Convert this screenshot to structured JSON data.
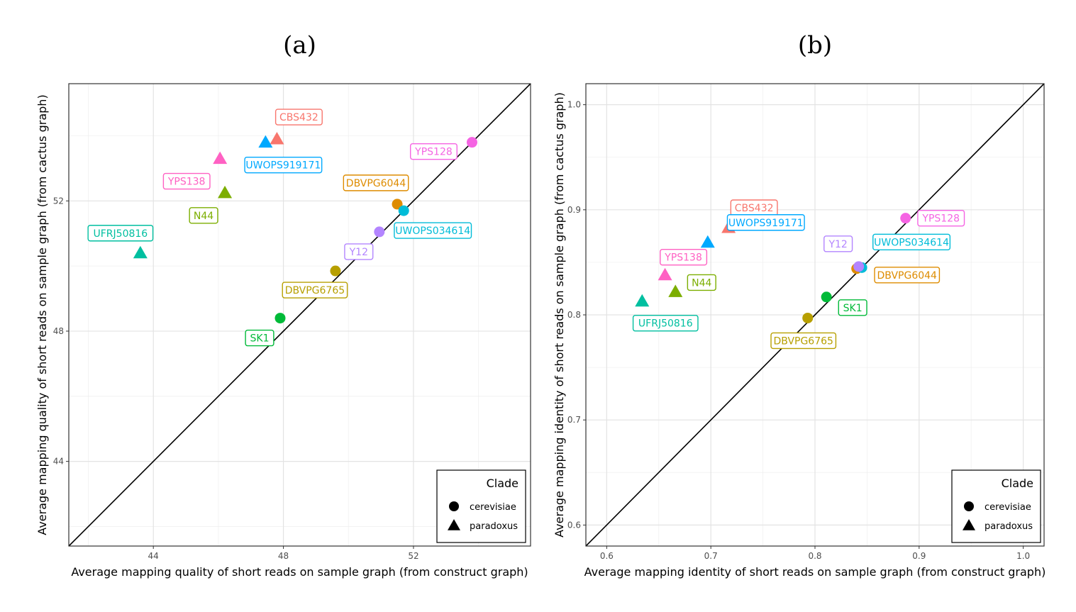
{
  "chart_data": [
    {
      "type": "scatter",
      "panel": "(a)",
      "title": "(a)",
      "xlabel": "Average mapping quality of short reads on sample graph (from construct graph)",
      "ylabel": "Average mapping quality of short reads on sample graph (from cactus graph)",
      "xlim": [
        41.4,
        55.6
      ],
      "ylim": [
        41.4,
        55.6
      ],
      "xticks": [
        44,
        48,
        52
      ],
      "yticks": [
        44,
        48,
        52
      ],
      "xtick_labels": [
        "44",
        "48",
        "52"
      ],
      "ytick_labels": [
        "44",
        "48",
        "52"
      ],
      "grid": true,
      "diagonal": "y = x",
      "legend": {
        "title": "Clade",
        "position": "bottom-right",
        "entries": [
          "cerevisiae",
          "paradoxus"
        ]
      },
      "points": [
        {
          "label": "CBS432",
          "x": 47.8,
          "y": 53.9,
          "clade": "paradoxus",
          "color": "#F8766D"
        },
        {
          "label": "UWOPS919171",
          "x": 47.45,
          "y": 53.8,
          "clade": "paradoxus",
          "color": "#00A9FF"
        },
        {
          "label": "YPS138",
          "x": 46.05,
          "y": 53.3,
          "clade": "paradoxus",
          "color": "#FF61C3"
        },
        {
          "label": "N44",
          "x": 46.2,
          "y": 52.25,
          "clade": "paradoxus",
          "color": "#7CAE00"
        },
        {
          "label": "UFRJ50816",
          "x": 43.6,
          "y": 50.4,
          "clade": "paradoxus",
          "color": "#00BFA0"
        },
        {
          "label": "YPS128",
          "x": 53.8,
          "y": 53.8,
          "clade": "cerevisiae",
          "color": "#F564E3"
        },
        {
          "label": "DBVPG6044",
          "x": 51.5,
          "y": 51.9,
          "clade": "cerevisiae",
          "color": "#DE8C00"
        },
        {
          "label": "UWOPS034614",
          "x": 51.7,
          "y": 51.7,
          "clade": "cerevisiae",
          "color": "#00BCD8"
        },
        {
          "label": "Y12",
          "x": 50.95,
          "y": 51.05,
          "clade": "cerevisiae",
          "color": "#B385FF"
        },
        {
          "label": "DBVPG6765",
          "x": 49.6,
          "y": 49.85,
          "clade": "cerevisiae",
          "color": "#B79F00"
        },
        {
          "label": "SK1",
          "x": 47.9,
          "y": 48.4,
          "clade": "cerevisiae",
          "color": "#00BA38"
        }
      ]
    },
    {
      "type": "scatter",
      "panel": "(b)",
      "title": "(b)",
      "xlabel": "Average mapping identity of short reads on sample graph (from construct graph)",
      "ylabel": "Average mapping identity of short reads on sample graph (from cactus graph)",
      "xlim": [
        0.58,
        1.02
      ],
      "ylim": [
        0.58,
        1.02
      ],
      "xticks": [
        0.6,
        0.7,
        0.8,
        0.9,
        1.0
      ],
      "yticks": [
        0.6,
        0.7,
        0.8,
        0.9,
        1.0
      ],
      "xtick_labels": [
        "0.6",
        "0.7",
        "0.8",
        "0.9",
        "1.0"
      ],
      "ytick_labels": [
        "0.6",
        "0.7",
        "0.8",
        "0.9",
        "1.0"
      ],
      "grid": true,
      "diagonal": "y = x",
      "legend": {
        "title": "Clade",
        "position": "bottom-right",
        "entries": [
          "cerevisiae",
          "paradoxus"
        ]
      },
      "points": [
        {
          "label": "CBS432",
          "x": 0.717,
          "y": 0.883,
          "clade": "paradoxus",
          "color": "#F8766D"
        },
        {
          "label": "UWOPS919171",
          "x": 0.697,
          "y": 0.869,
          "clade": "paradoxus",
          "color": "#00A9FF"
        },
        {
          "label": "YPS138",
          "x": 0.656,
          "y": 0.838,
          "clade": "paradoxus",
          "color": "#FF61C3"
        },
        {
          "label": "N44",
          "x": 0.666,
          "y": 0.822,
          "clade": "paradoxus",
          "color": "#7CAE00"
        },
        {
          "label": "UFRJ50816",
          "x": 0.634,
          "y": 0.813,
          "clade": "paradoxus",
          "color": "#00BFA0"
        },
        {
          "label": "YPS128",
          "x": 0.887,
          "y": 0.892,
          "clade": "cerevisiae",
          "color": "#F564E3"
        },
        {
          "label": "DBVPG6044",
          "x": 0.84,
          "y": 0.844,
          "clade": "cerevisiae",
          "color": "#DE8C00"
        },
        {
          "label": "UWOPS034614",
          "x": 0.845,
          "y": 0.845,
          "clade": "cerevisiae",
          "color": "#00BCD8"
        },
        {
          "label": "Y12",
          "x": 0.842,
          "y": 0.846,
          "clade": "cerevisiae",
          "color": "#B385FF"
        },
        {
          "label": "DBVPG6765",
          "x": 0.793,
          "y": 0.797,
          "clade": "cerevisiae",
          "color": "#B79F00"
        },
        {
          "label": "SK1",
          "x": 0.811,
          "y": 0.817,
          "clade": "cerevisiae",
          "color": "#00BA38"
        }
      ]
    }
  ]
}
